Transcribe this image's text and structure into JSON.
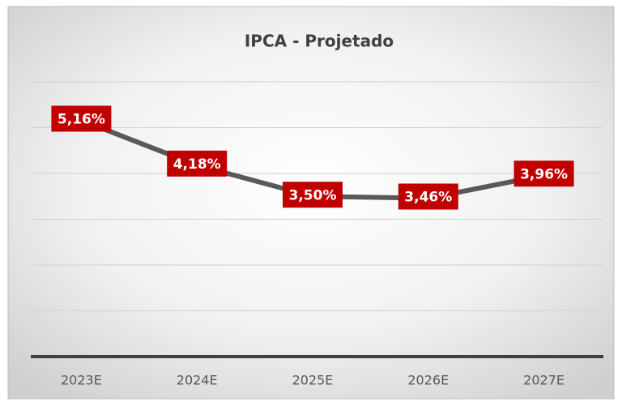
{
  "chart_data": {
    "type": "line",
    "title": "IPCA - Projetado",
    "categories": [
      "2023E",
      "2024E",
      "2025E",
      "2026E",
      "2027E"
    ],
    "values": [
      5.16,
      4.18,
      3.5,
      3.46,
      3.96
    ],
    "value_labels": [
      "5,16%",
      "4,18%",
      "3,50%",
      "3,46%",
      "3,96%"
    ],
    "color": "#595959",
    "label_color": "#c00000",
    "ylim": [
      0,
      6
    ],
    "yticks": [
      0,
      1,
      2,
      3,
      4,
      5,
      6
    ],
    "grid": true
  }
}
